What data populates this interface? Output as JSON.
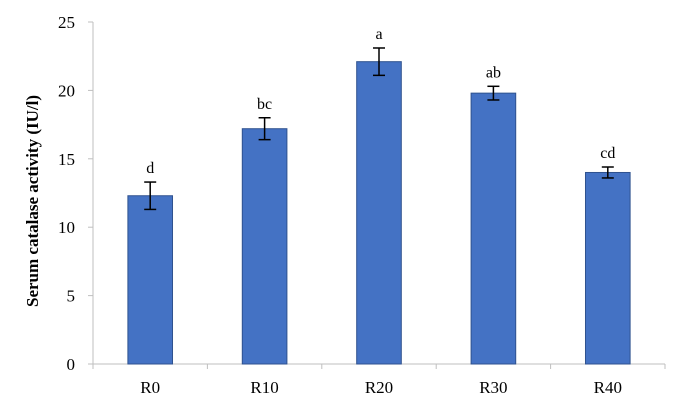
{
  "chart_data": {
    "type": "bar",
    "title": "",
    "xlabel": "",
    "ylabel": "Serum catalase activity (IU/l)",
    "categories": [
      "R0",
      "R10",
      "R20",
      "R30",
      "R40"
    ],
    "values": [
      12.3,
      17.2,
      22.1,
      19.8,
      14.0
    ],
    "errors": [
      1.0,
      0.8,
      1.0,
      0.5,
      0.4
    ],
    "significance_letters": [
      "d",
      "bc",
      "a",
      "ab",
      "cd"
    ],
    "ylim": [
      0,
      25
    ],
    "yticks": [
      0,
      5,
      10,
      15,
      20,
      25
    ],
    "grid": false,
    "legend": "none",
    "bar_color": "#4472C4",
    "bar_edge_color": "#2F528F"
  }
}
